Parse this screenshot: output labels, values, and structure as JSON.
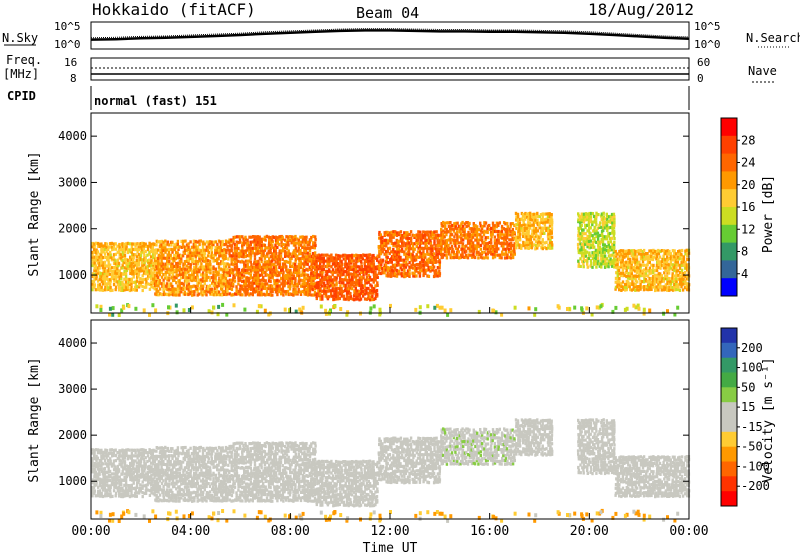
{
  "header": {
    "station": "Hokkaido (fitACF)",
    "beam": "Beam 04",
    "date": "18/Aug/2012"
  },
  "noise_panel": {
    "left_label": "N.Sky",
    "right_label": "N.Search",
    "ticks": [
      "10^5",
      "10^0"
    ],
    "sky_trace": [
      [
        0,
        1.6
      ],
      [
        1,
        1.7
      ],
      [
        2,
        1.9
      ],
      [
        3,
        2.0
      ],
      [
        4,
        2.2
      ],
      [
        5,
        2.4
      ],
      [
        6,
        2.6
      ],
      [
        7,
        2.9
      ],
      [
        8,
        3.1
      ],
      [
        9,
        3.3
      ],
      [
        10,
        3.5
      ],
      [
        11,
        3.6
      ],
      [
        12,
        3.6
      ],
      [
        13,
        3.5
      ],
      [
        14,
        3.4
      ],
      [
        15,
        3.4
      ],
      [
        16,
        3.3
      ],
      [
        17,
        3.3
      ],
      [
        18,
        3.2
      ],
      [
        19,
        3.1
      ],
      [
        20,
        2.9
      ],
      [
        21,
        2.6
      ],
      [
        22,
        2.3
      ],
      [
        23,
        2.0
      ],
      [
        24,
        1.8
      ]
    ]
  },
  "freq_panel": {
    "left_label_1": "Freq.",
    "left_label_2": "[MHz]",
    "left_ticks": [
      "16",
      "8"
    ],
    "right_label": "Nave",
    "right_ticks": [
      "60",
      "0"
    ]
  },
  "cpid_panel": {
    "label": "CPID",
    "value": "normal (fast) 151"
  },
  "power_panel": {
    "ylabel": "Slant Range [km]",
    "cbar_label": "Power [dB]",
    "cbar_ticks": [
      "28",
      "24",
      "20",
      "16",
      "12",
      "8",
      "4"
    ],
    "cbar_colors": [
      "#ff0000",
      "#ff4000",
      "#ff6600",
      "#ff9900",
      "#ffcc33",
      "#ccdd22",
      "#66cc33",
      "#339966",
      "#336699",
      "#0000ff"
    ]
  },
  "velocity_panel": {
    "ylabel": "Slant Range [km]",
    "cbar_label": "Velocity [m s⁻¹]",
    "cbar_ticks": [
      "200",
      "100",
      "50",
      "15",
      "-15",
      "-50",
      "-100",
      "-200"
    ],
    "cbar_colors": [
      "#2233aa",
      "#3366bb",
      "#339966",
      "#44aa44",
      "#88cc44",
      "#c8c8c0",
      "#c8c8c0",
      "#ffcc33",
      "#ff9900",
      "#ff6600",
      "#ff3300",
      "#ff0000"
    ]
  },
  "x_axis": {
    "label": "Time UT",
    "tick_labels": [
      "00:00",
      "04:00",
      "08:00",
      "12:00",
      "16:00",
      "20:00",
      "00:00"
    ]
  },
  "chart_data": {
    "type": "heatmap",
    "title": "Hokkaido (fitACF)",
    "xlabel": "Time UT",
    "ylabel": "Slant Range [km]",
    "xlim": [
      0,
      24
    ],
    "ylim": [
      180,
      4500
    ],
    "y_ticks": [
      1000,
      2000,
      3000,
      4000
    ],
    "echo_bands": [
      {
        "t0": 0.0,
        "t1": 2.5,
        "r0": 700,
        "r1": 1750,
        "power": 22,
        "velocity": -10
      },
      {
        "t0": 2.5,
        "t1": 5.5,
        "r0": 600,
        "r1": 1800,
        "power": 24,
        "velocity": -5
      },
      {
        "t0": 5.5,
        "t1": 9.0,
        "r0": 600,
        "r1": 1900,
        "power": 26,
        "velocity": -5
      },
      {
        "t0": 9.0,
        "t1": 11.5,
        "r0": 500,
        "r1": 1500,
        "power": 28,
        "velocity": 0
      },
      {
        "t0": 11.5,
        "t1": 14.0,
        "r0": 1000,
        "r1": 2000,
        "power": 27,
        "velocity": -10
      },
      {
        "t0": 14.0,
        "t1": 17.0,
        "r0": 1400,
        "r1": 2200,
        "power": 26,
        "velocity": 5
      },
      {
        "t0": 17.0,
        "t1": 18.5,
        "r0": 1600,
        "r1": 2400,
        "power": 22,
        "velocity": 0
      },
      {
        "t0": 19.5,
        "t1": 21.0,
        "r0": 1200,
        "r1": 2400,
        "power": 18,
        "velocity": -5
      },
      {
        "t0": 21.0,
        "t1": 24.0,
        "r0": 700,
        "r1": 1600,
        "power": 22,
        "velocity": -5
      }
    ],
    "near_range_band": {
      "r0": 180,
      "r1": 400,
      "velocity": -60
    }
  }
}
